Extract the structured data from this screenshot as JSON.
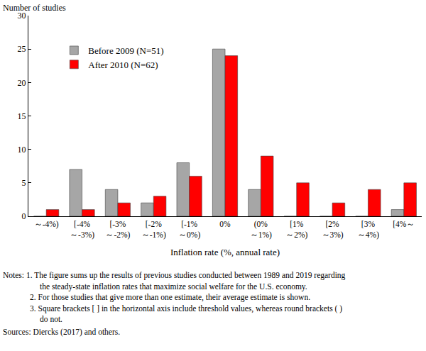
{
  "chart_data": {
    "type": "bar",
    "y_label": "Number of studies",
    "x_label": "Inflation rate (%, annual rate)",
    "categories": [
      "～-4%)",
      "[-4%\n～-3%)",
      "[-3%\n～-2%)",
      "[-2%\n～-1%)",
      "[-1%\n～0%)",
      "0%",
      "(0%\n～1%)",
      "[1%\n～2%)",
      "[2%\n～3%)",
      "[3%\n～4%)",
      "[4%～"
    ],
    "series": [
      {
        "name": "Before 2009 (N=51)",
        "color": "#a6a6a6",
        "values": [
          0,
          7,
          4,
          2,
          8,
          25,
          4,
          0,
          0,
          0,
          1
        ]
      },
      {
        "name": "After 2010 (N=62)",
        "color": "#ff0000",
        "values": [
          1,
          1,
          2,
          3,
          6,
          24,
          9,
          5,
          2,
          4,
          5
        ]
      }
    ],
    "ylim": [
      0,
      30
    ],
    "yticks": [
      0,
      5,
      10,
      15,
      20,
      25,
      30
    ],
    "grid": false,
    "legend": "upper left",
    "notes": [
      "Notes: 1. The figure sums up the results of previous studies conducted between 1989 and 2019 regarding",
      "the steady-state inflation rates that maximize social welfare for the U.S. economy.",
      "2. For those studies that give more than one estimate, their average estimate is shown.",
      "3. Square brackets [ ] in the horizontal axis include threshold values, whereas round brackets ( )",
      "do not."
    ],
    "source": "Sources: Diercks (2017) and others."
  }
}
